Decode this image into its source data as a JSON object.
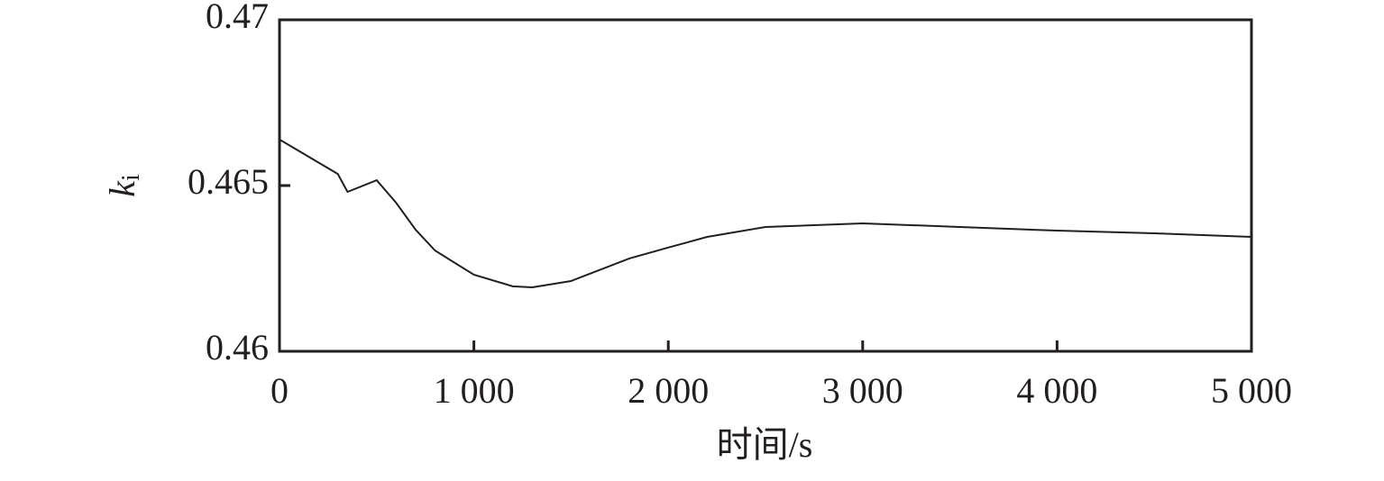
{
  "chart_data": {
    "type": "line",
    "x_label": "时间/s",
    "y_label": {
      "main": "k",
      "sub": "i"
    },
    "x": [
      0,
      300,
      350,
      500,
      600,
      700,
      800,
      1000,
      1200,
      1300,
      1500,
      1800,
      2000,
      2200,
      2500,
      3000,
      3500,
      4000,
      4500,
      5000
    ],
    "series": [
      {
        "color": "#231f20",
        "values": [
          0.46639,
          0.46535,
          0.46481,
          0.46516,
          0.46448,
          0.46367,
          0.46304,
          0.46231,
          0.46196,
          0.46193,
          0.46212,
          0.4628,
          0.46313,
          0.46345,
          0.46375,
          0.46386,
          0.46375,
          0.46364,
          0.46356,
          0.46345
        ]
      }
    ],
    "xlim": [
      0,
      5000
    ],
    "xticks": [
      0,
      {
        "value": 1000,
        "label": "1 000"
      },
      {
        "value": 2000,
        "label": "2 000"
      },
      {
        "value": 3000,
        "label": "3 000"
      },
      {
        "value": 4000,
        "label": "4 000"
      },
      {
        "value": 5000,
        "label": "5 000"
      }
    ],
    "ylim": [
      0.46,
      0.47
    ],
    "yticks": [
      0.46,
      0.465,
      0.47
    ]
  }
}
